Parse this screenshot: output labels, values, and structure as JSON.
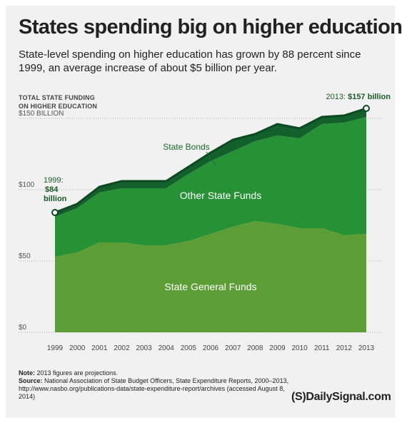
{
  "title": "States spending big on higher education",
  "subtitle": "State-level spending on higher education has grown by 88 percent since 1999, an average increase of about $5 billion per year.",
  "y_axis_title_line1": "TOTAL STATE FUNDING",
  "y_axis_title_line2": "ON HIGHER EDUCATION",
  "note_label": "Note:",
  "note_text": "2013 figures are projections.",
  "source_label": "Source:",
  "source_text": "National Association of State Budget Officers, State Expenditure Reports, 2000–2013, http://www.nasbo.org/publications-data/state-expenditure-report/archives (accessed August 8, 2014)",
  "brand": "(S)DailySignal.com",
  "colors": {
    "general": "#5c9e35",
    "other": "#279235",
    "bonds": "#14602c",
    "outline": "#0d4a22",
    "background": "#f1f1f1"
  },
  "chart_data": {
    "type": "area",
    "stacked": true,
    "x": [
      "1999",
      "2000",
      "2001",
      "2002",
      "2003",
      "2004",
      "2005",
      "2006",
      "2007",
      "2008",
      "2009",
      "2010",
      "2011",
      "2012",
      "2013"
    ],
    "series": [
      {
        "name": "State General Funds",
        "values": [
          53,
          56,
          63,
          63,
          61,
          61,
          64,
          69,
          74,
          78,
          76,
          73,
          73,
          68,
          69
        ]
      },
      {
        "name": "Other State Funds",
        "values": [
          28,
          31,
          35,
          38,
          40,
          40,
          47,
          51,
          53,
          56,
          62,
          63,
          73,
          79,
          82
        ]
      },
      {
        "name": "State Bonds",
        "values": [
          3,
          3,
          4,
          5,
          5,
          5,
          5,
          6,
          8,
          5,
          8,
          7,
          5,
          5,
          6
        ]
      }
    ],
    "totals": [
      84,
      90,
      102,
      106,
      106,
      106,
      116,
      126,
      135,
      139,
      146,
      143,
      151,
      152,
      157
    ],
    "y_ticks": [
      0,
      50,
      100,
      150
    ],
    "y_tick_labels": [
      "$0",
      "$50",
      "$100",
      "$150 BILLION"
    ],
    "ylim": [
      0,
      160
    ],
    "grid": true,
    "annotations": {
      "start_line1": "1999:",
      "start_line2": "$84",
      "start_line3": "billion",
      "end_prefix": "2013: ",
      "end_value": "$157 billion"
    }
  }
}
